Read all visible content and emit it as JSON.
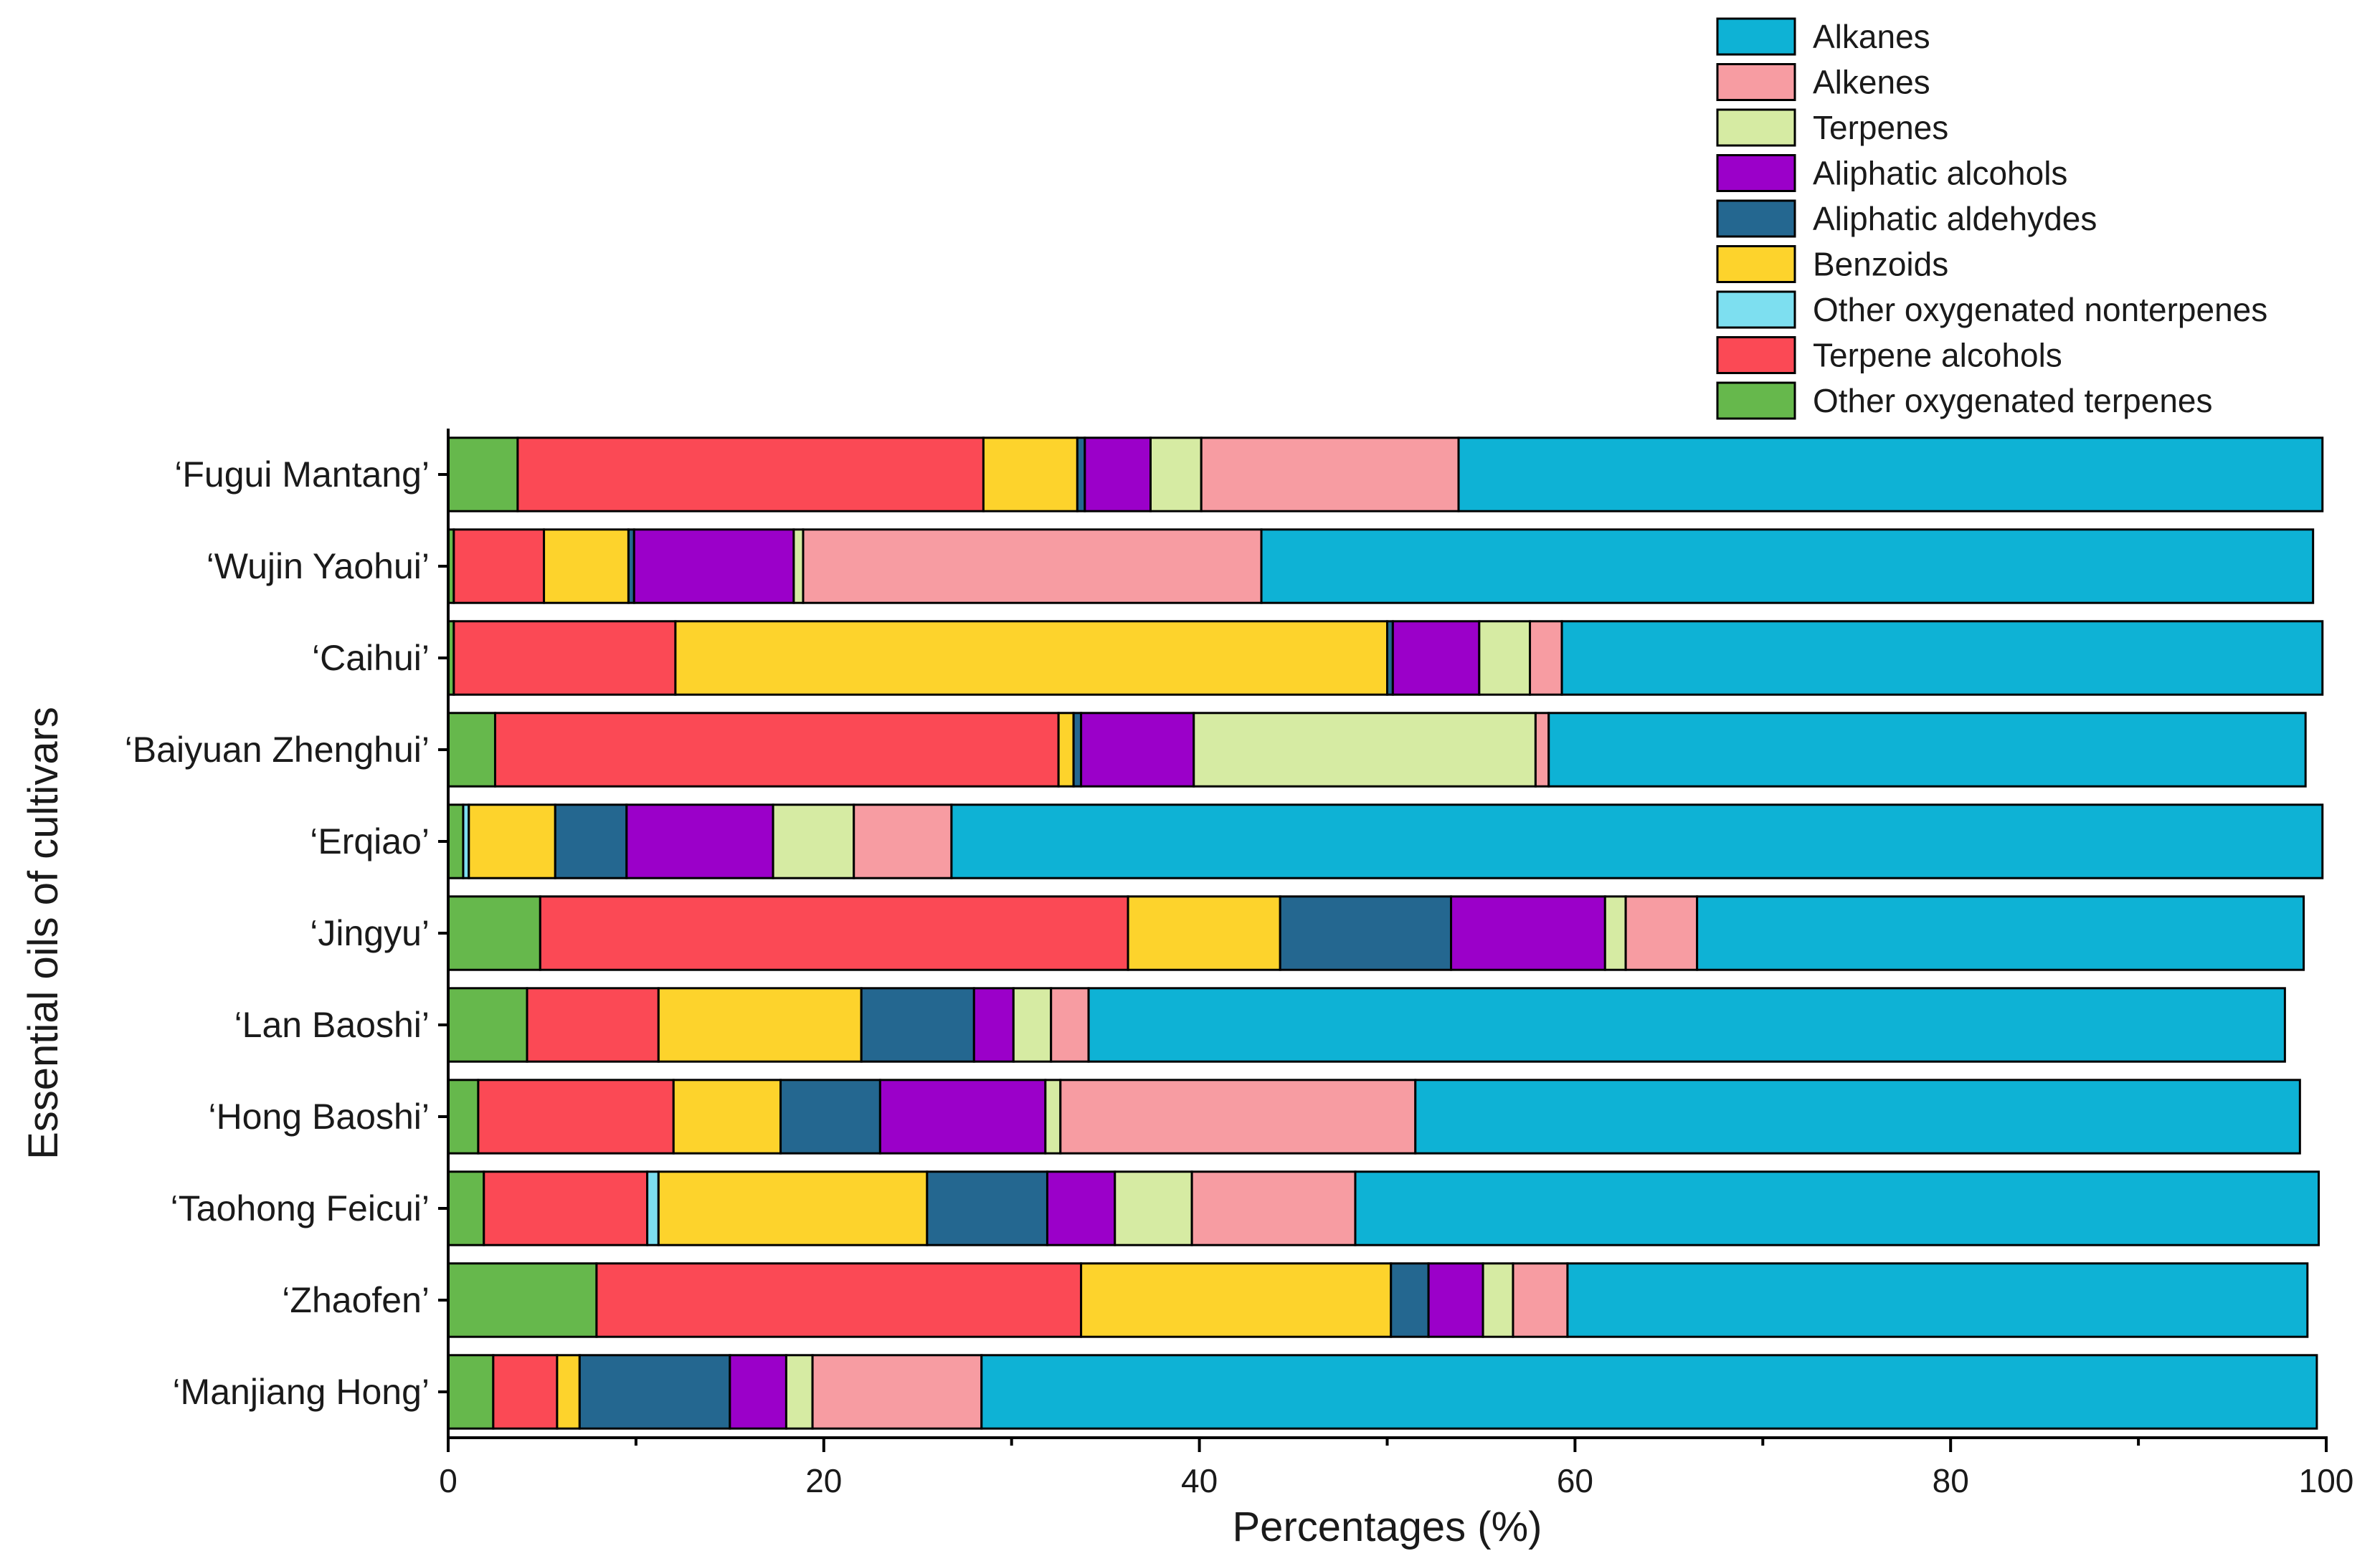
{
  "chart_data": {
    "type": "bar",
    "orientation": "horizontal",
    "stacked": true,
    "xlabel": "Percentages (%)",
    "ylabel": "Essential oils of cultivars",
    "xlim": [
      0,
      100
    ],
    "xticks": [
      0,
      20,
      40,
      60,
      80,
      100
    ],
    "xticks_labels": [
      "0",
      "20",
      "40",
      "60",
      "80",
      "100"
    ],
    "legend_position": "top-right",
    "categories": [
      "‘Fugui Mantang’",
      "‘Wujin Yaohui’",
      "‘Caihui’",
      "‘Baiyuan Zhenghui’",
      "‘Erqiao’",
      "‘Jingyu’",
      "‘Lan Baoshi’",
      "‘Hong Baoshi’",
      "‘Taohong Feicui’",
      "‘Zhaofen’",
      "‘Manjiang Hong’"
    ],
    "series": [
      {
        "name": "Other oxygenated terpenes",
        "color": "#66b84c",
        "values": [
          3.7,
          0.3,
          0.3,
          2.5,
          0.8,
          4.9,
          4.2,
          1.6,
          1.9,
          7.9,
          2.4
        ]
      },
      {
        "name": "Terpene alcohols",
        "color": "#fb4955",
        "values": [
          24.8,
          4.8,
          11.8,
          30.0,
          0.0,
          31.3,
          7.0,
          10.4,
          8.7,
          25.8,
          3.4
        ]
      },
      {
        "name": "Other oxygenated nonterpenes",
        "color": "#7ddff0",
        "values": [
          0.0,
          0.0,
          0.0,
          0.0,
          0.3,
          0.0,
          0.0,
          0.0,
          0.6,
          0.0,
          0.0
        ]
      },
      {
        "name": "Benzoids",
        "color": "#fdd32c",
        "values": [
          5.0,
          4.5,
          37.9,
          0.8,
          4.6,
          8.1,
          10.8,
          5.7,
          14.3,
          16.5,
          1.2
        ]
      },
      {
        "name": "Aliphatic aldehydes",
        "color": "#246790",
        "values": [
          0.4,
          0.3,
          0.3,
          0.4,
          3.8,
          9.1,
          6.0,
          5.3,
          6.4,
          2.0,
          8.0
        ]
      },
      {
        "name": "Aliphatic alcohols",
        "color": "#9b00c9",
        "values": [
          3.5,
          8.5,
          4.6,
          6.0,
          7.8,
          8.2,
          2.1,
          8.8,
          3.6,
          2.9,
          3.0
        ]
      },
      {
        "name": "Terpenes",
        "color": "#d6eba3",
        "values": [
          2.7,
          0.5,
          2.7,
          18.2,
          4.3,
          1.1,
          2.0,
          0.8,
          4.1,
          1.6,
          1.4
        ]
      },
      {
        "name": "Alkenes",
        "color": "#f79ca2",
        "values": [
          13.7,
          24.4,
          1.7,
          0.7,
          5.2,
          3.8,
          2.0,
          18.9,
          8.7,
          2.9,
          9.0
        ]
      },
      {
        "name": "Alkanes",
        "color": "#0eb2d5",
        "values": [
          46.0,
          56.0,
          40.5,
          40.3,
          73.0,
          32.3,
          63.7,
          47.1,
          51.3,
          39.4,
          71.1
        ]
      }
    ],
    "legend_order": [
      "Alkanes",
      "Alkenes",
      "Terpenes",
      "Aliphatic alcohols",
      "Aliphatic aldehydes",
      "Benzoids",
      "Other oxygenated nonterpenes",
      "Terpene alcohols",
      "Other oxygenated terpenes"
    ]
  }
}
